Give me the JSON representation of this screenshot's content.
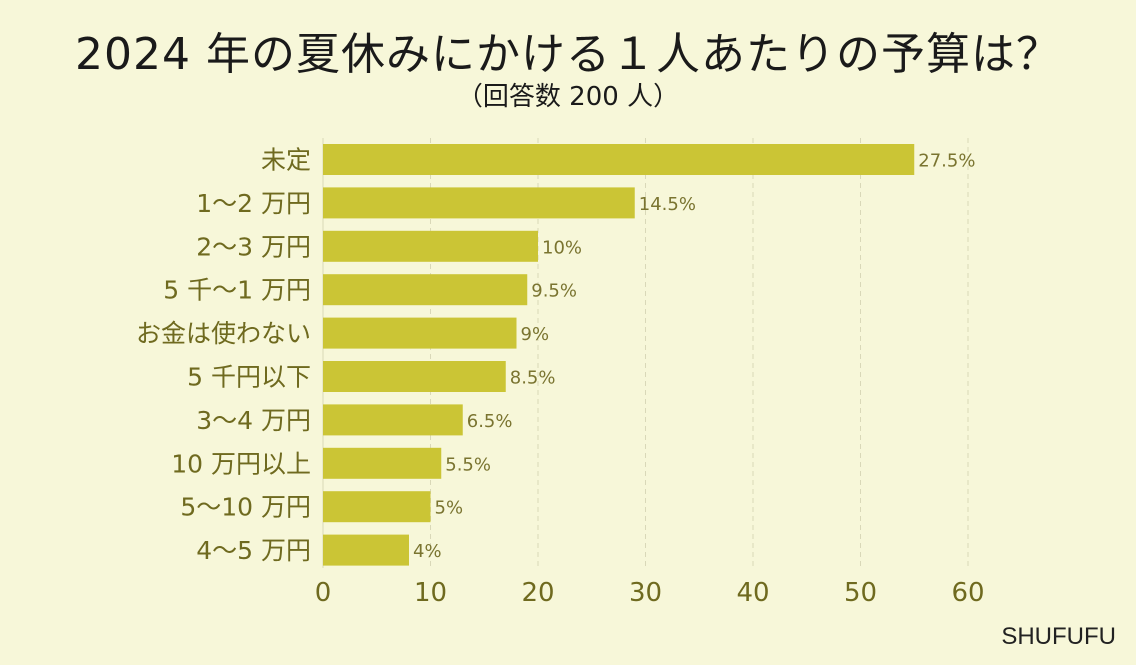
{
  "title": "2024 年の夏休みにかける１人あたりの予算は？",
  "subtitle": "（回答数 200 人）",
  "brand": "SHUFUFU",
  "colors": {
    "bar": "#cbc535",
    "category_text": "#6f6a1f",
    "value_text": "#7a7430",
    "grid": "#d9d8b8"
  },
  "chart_data": {
    "type": "bar",
    "orientation": "horizontal",
    "categories": [
      "未定",
      "1～2 万円",
      "2～3 万円",
      "5 千～1 万円",
      "お金は使わない",
      "5 千円以下",
      "3～4 万円",
      "10 万円以上",
      "5～10 万円",
      "4～5 万円"
    ],
    "values": [
      55,
      29,
      20,
      19,
      18,
      17,
      13,
      11,
      10,
      8
    ],
    "data_labels": [
      "27.5%",
      "14.5%",
      "10%",
      "9.5%",
      "9%",
      "8.5%",
      "6.5%",
      "5.5%",
      "5%",
      "4%"
    ],
    "xticks": [
      "0",
      "10",
      "20",
      "30",
      "40",
      "50",
      "60"
    ],
    "xlim": [
      0,
      60
    ],
    "grid": true
  }
}
